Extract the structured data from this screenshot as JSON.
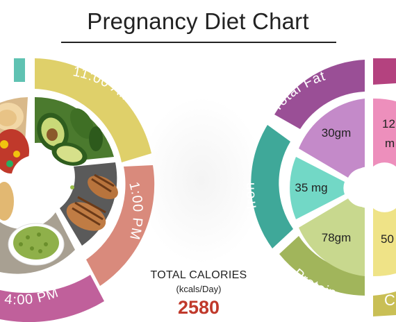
{
  "header": {
    "title": "Pregnancy Diet Chart"
  },
  "meal_wheel": {
    "times": [
      {
        "label": "11:00 AM",
        "color": "#dfd06a"
      },
      {
        "label": "1:00 PM",
        "color": "#d98a7c"
      },
      {
        "label": "4:00 PM",
        "color": "#c0609b"
      }
    ],
    "partial_ring_color": "#5fc2b2"
  },
  "nutrient_wheel": {
    "ring_labels": [
      {
        "label": "Total Fat",
        "color": "#9a4f96"
      },
      {
        "label": "Iron",
        "color": "#3fa899"
      },
      {
        "label": "Protein",
        "color": "#a1b55b"
      },
      {
        "label": "C",
        "color": "#c9bf55"
      }
    ],
    "partial_ring_color": "#b4427f",
    "values": [
      {
        "value": "30gm",
        "color": "#c48ac9"
      },
      {
        "value": "35 mg",
        "color": "#72d8c6"
      },
      {
        "value": "78gm",
        "color": "#c8d88e"
      },
      {
        "value": "12",
        "color": "#ed8fbc"
      },
      {
        "value": "m",
        "color": "#ed8fbc"
      },
      {
        "value": "50",
        "color": "#efe387"
      }
    ]
  },
  "totals": {
    "label": "TOTAL CALORIES",
    "unit": "(kcals/Day)",
    "value": "2580"
  }
}
